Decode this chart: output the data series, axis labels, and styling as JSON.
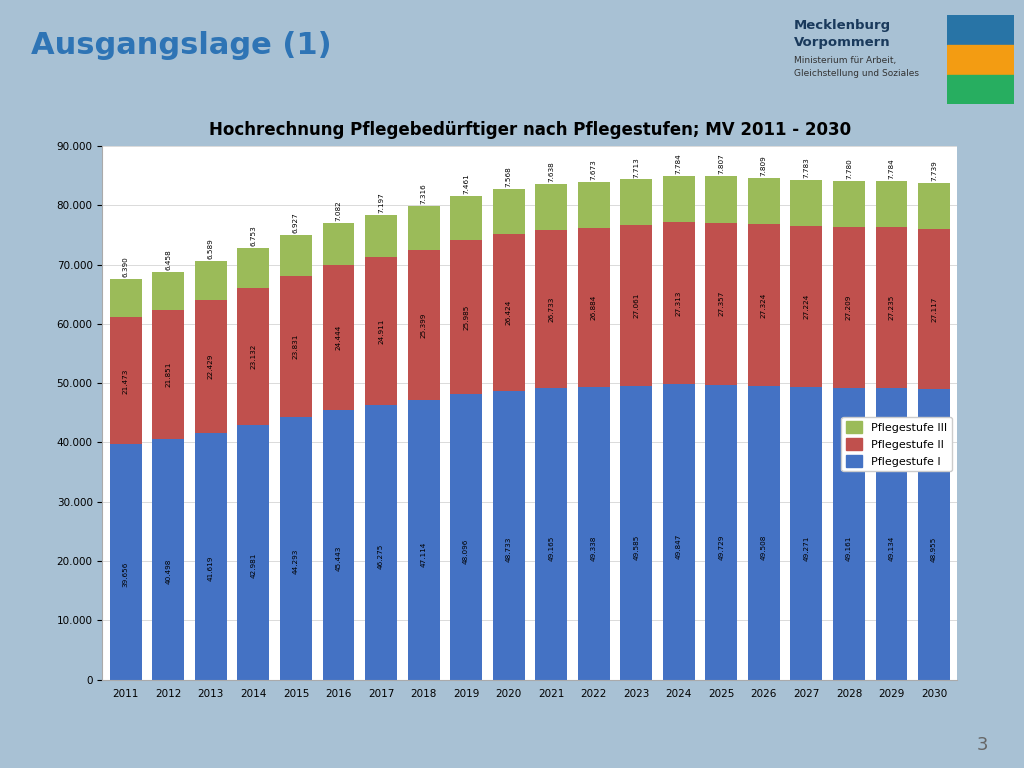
{
  "title": "Hochrechnung Pflegebedürftiger nach Pflegestufen; MV 2011 - 2030",
  "years": [
    2011,
    2012,
    2013,
    2014,
    2015,
    2016,
    2017,
    2018,
    2019,
    2020,
    2021,
    2022,
    2023,
    2024,
    2025,
    2026,
    2027,
    2028,
    2029,
    2030
  ],
  "pflegestufe_I": [
    39656,
    40498,
    41619,
    42981,
    44293,
    45443,
    46275,
    47114,
    48096,
    48733,
    49165,
    49338,
    49585,
    49847,
    49729,
    49508,
    49271,
    49161,
    49134,
    48955
  ],
  "pflegestufe_II": [
    21473,
    21851,
    22429,
    23132,
    23831,
    24444,
    24911,
    25399,
    25985,
    26424,
    26733,
    26884,
    27061,
    27313,
    27357,
    27324,
    27224,
    27209,
    27235,
    27117
  ],
  "pflegestufe_III": [
    6390,
    6458,
    6589,
    6753,
    6927,
    7082,
    7197,
    7316,
    7461,
    7568,
    7638,
    7673,
    7713,
    7784,
    7807,
    7809,
    7783,
    7780,
    7784,
    7739
  ],
  "color_I": "#4472C4",
  "color_II": "#C0504D",
  "color_III": "#9BBB59",
  "legend_III": "Pflegestufe III",
  "legend_II": "Pflegestufe II",
  "legend_I": "Pflegestufe I",
  "bg_slide": "#A8C1D4",
  "bg_chart": "#FFFFFF",
  "title_slide": "Ausgangslage (1)",
  "title_color_slide": "#2E74B5",
  "ylim": [
    0,
    90000
  ],
  "yticks": [
    0,
    10000,
    20000,
    30000,
    40000,
    50000,
    60000,
    70000,
    80000,
    90000
  ]
}
